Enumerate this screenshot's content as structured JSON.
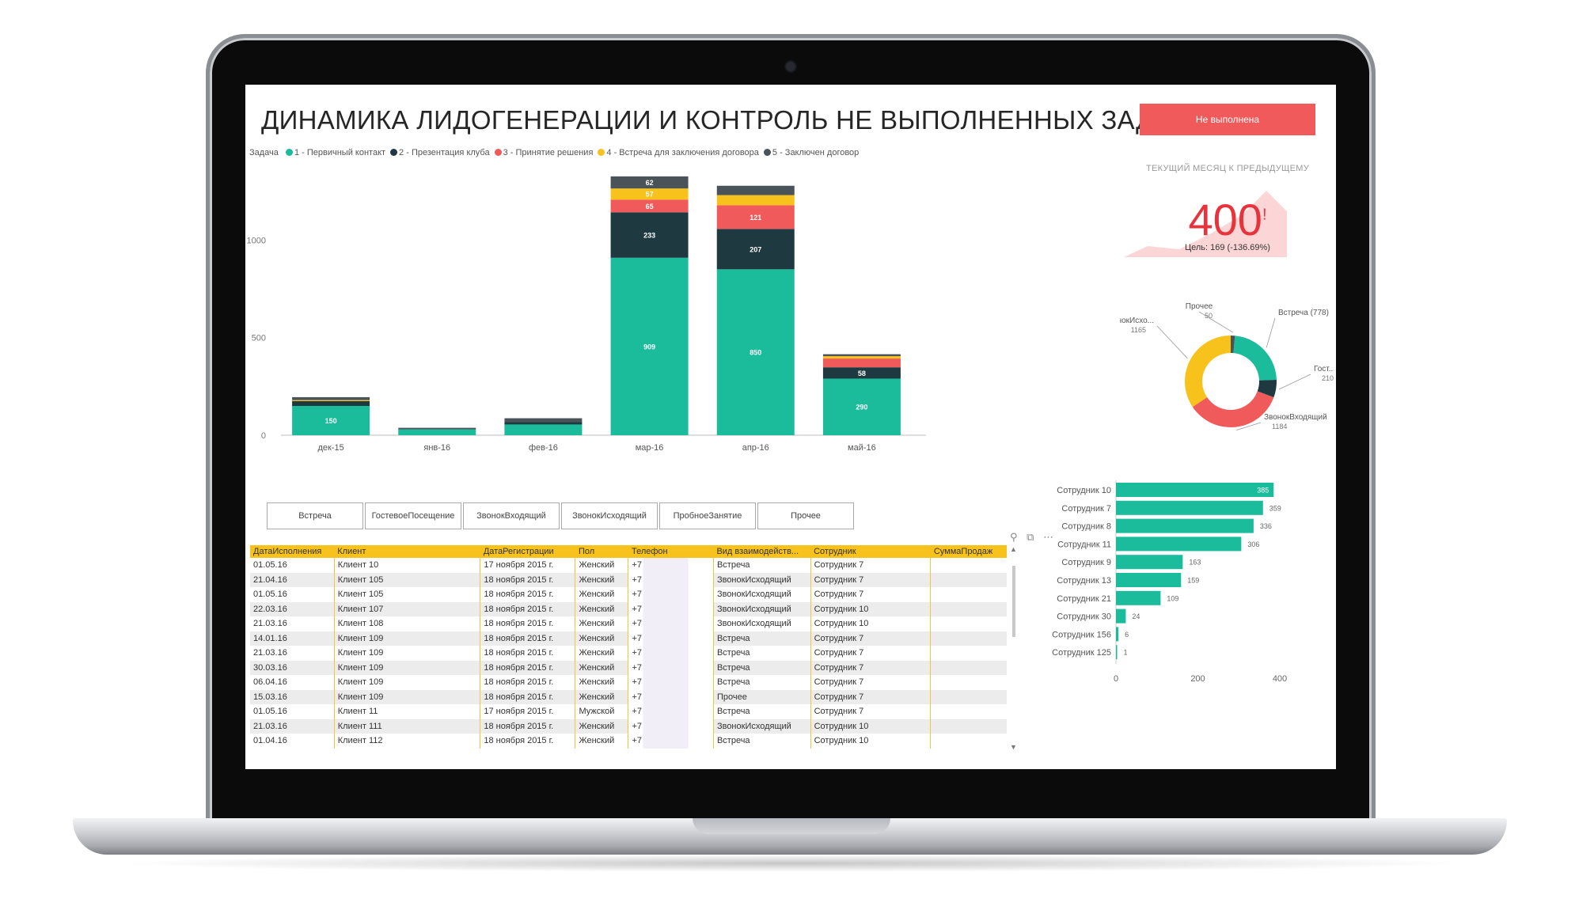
{
  "title": "ДИНАМИКА ЛИДОГЕНЕРАЦИИ И КОНТРОЛЬ НЕ ВЫПОЛНЕННЫХ ЗАДАЧ",
  "status_button": "Не выполнена",
  "legend": {
    "title": "Задача",
    "items": [
      {
        "label": "1 - Первичный контакт",
        "color": "#1abc9c"
      },
      {
        "label": "2 - Презентация клуба",
        "color": "#1e3a40"
      },
      {
        "label": "3 - Принятие решения",
        "color": "#f15a5a"
      },
      {
        "label": "4 - Встреча для заключения договора",
        "color": "#f7c21b"
      },
      {
        "label": "5 - Заключен договор",
        "color": "#4a5458"
      }
    ]
  },
  "kpi": {
    "subtitle": "ТЕКУЩИЙ МЕСЯЦ К ПРЕДЫДУЩЕМУ",
    "value": "400",
    "indicator": "!",
    "goal": "Цель: 169 (-136.69%)"
  },
  "filters": [
    "Встреча",
    "ГостевоеПосещение",
    "ЗвонокВходящий",
    "ЗвонокИсходящий",
    "ПробноеЗанятие",
    "Прочее"
  ],
  "table_tools": {
    "pin": "⚲",
    "focus": "⧉",
    "more": "⋯"
  },
  "table": {
    "columns": [
      "ДатаИсполнения",
      "Клиент",
      "ДатаРегистрации",
      "Пол",
      "Телефон",
      "Вид взаимодейств...",
      "Сотрудник",
      "СуммаПродаж"
    ],
    "rows": [
      [
        "01.05.16",
        "Клиент 10",
        "17 ноября 2015 г.",
        "Женский",
        "+7",
        "Встреча",
        "Сотрудник 7",
        ""
      ],
      [
        "21.04.16",
        "Клиент 105",
        "18 ноября 2015 г.",
        "Женский",
        "+7",
        "ЗвонокИсходящий",
        "Сотрудник 7",
        ""
      ],
      [
        "01.05.16",
        "Клиент 105",
        "18 ноября 2015 г.",
        "Женский",
        "+7",
        "ЗвонокИсходящий",
        "Сотрудник 7",
        ""
      ],
      [
        "22.03.16",
        "Клиент 107",
        "18 ноября 2015 г.",
        "Женский",
        "+7",
        "ЗвонокИсходящий",
        "Сотрудник 10",
        ""
      ],
      [
        "21.03.16",
        "Клиент 108",
        "18 ноября 2015 г.",
        "Женский",
        "+7",
        "ЗвонокИсходящий",
        "Сотрудник 10",
        ""
      ],
      [
        "14.01.16",
        "Клиент 109",
        "18 ноября 2015 г.",
        "Женский",
        "+7",
        "Встреча",
        "Сотрудник 7",
        ""
      ],
      [
        "21.03.16",
        "Клиент 109",
        "18 ноября 2015 г.",
        "Женский",
        "+7",
        "Встреча",
        "Сотрудник 7",
        ""
      ],
      [
        "30.03.16",
        "Клиент 109",
        "18 ноября 2015 г.",
        "Женский",
        "+7",
        "Встреча",
        "Сотрудник 7",
        ""
      ],
      [
        "06.04.16",
        "Клиент 109",
        "18 ноября 2015 г.",
        "Женский",
        "+7",
        "Встреча",
        "Сотрудник 7",
        ""
      ],
      [
        "15.03.16",
        "Клиент 109",
        "18 ноября 2015 г.",
        "Женский",
        "+7",
        "Прочее",
        "Сотрудник 7",
        ""
      ],
      [
        "01.05.16",
        "Клиент 11",
        "17 ноября 2015 г.",
        "Мужской",
        "+7",
        "Встреча",
        "Сотрудник 7",
        ""
      ],
      [
        "21.03.16",
        "Клиент 111",
        "18 ноября 2015 г.",
        "Женский",
        "+7",
        "ЗвонокИсходящий",
        "Сотрудник 10",
        ""
      ],
      [
        "01.04.16",
        "Клиент 112",
        "18 ноября 2015 г.",
        "Женский",
        "+7",
        "Встреча",
        "Сотрудник 10",
        ""
      ]
    ]
  },
  "scroll": {
    "up": "▲",
    "down": "▼"
  },
  "chart_data": [
    {
      "type": "bar",
      "stacked": true,
      "categories": [
        "дек-15",
        "янв-16",
        "фев-16",
        "мар-16",
        "апр-16",
        "май-16"
      ],
      "ylim": [
        0,
        1350
      ],
      "yticks": [
        0,
        500,
        1000
      ],
      "grid": false,
      "legend_position": "top-left",
      "series": [
        {
          "name": "1 - Первичный контакт",
          "color": "#1abc9c",
          "values": [
            150,
            30,
            55,
            909,
            850,
            290
          ],
          "labels": [
            "150",
            "",
            "",
            "909",
            "850",
            "290"
          ]
        },
        {
          "name": "2 - Презентация клуба",
          "color": "#1e3a40",
          "values": [
            25,
            0,
            12,
            233,
            207,
            58
          ],
          "labels": [
            "",
            "",
            "",
            "233",
            "207",
            "58"
          ]
        },
        {
          "name": "3 - Принятие решения",
          "color": "#f15a5a",
          "values": [
            0,
            0,
            0,
            65,
            121,
            45
          ],
          "labels": [
            "",
            "",
            "",
            "65",
            "121",
            ""
          ]
        },
        {
          "name": "4 - Встреча для заключения договора",
          "color": "#f7c21b",
          "values": [
            5,
            0,
            0,
            57,
            52,
            12
          ],
          "labels": [
            "",
            "",
            "",
            "57",
            "",
            ""
          ]
        },
        {
          "name": "5 - Заключен договор",
          "color": "#4a5458",
          "values": [
            15,
            8,
            20,
            62,
            48,
            10
          ],
          "labels": [
            "",
            "",
            "",
            "62",
            "",
            ""
          ]
        }
      ]
    },
    {
      "type": "pie",
      "donut": true,
      "slices": [
        {
          "label": "Встреча",
          "value": 778,
          "display": "Встреча (778)",
          "color": "#1abc9c"
        },
        {
          "label": "Гост...",
          "value": 210,
          "display": "Гост...",
          "value_text": "210",
          "color": "#1e3a40"
        },
        {
          "label": "ЗвонокВходящий",
          "value": 1184,
          "display": "ЗвонокВходящий",
          "value_text": "1184",
          "color": "#f15a5a"
        },
        {
          "label": "ЗвонокИсхо...",
          "value": 1165,
          "display": "ЗвонокИсхо...",
          "value_text": "1165",
          "color": "#f7c21b"
        },
        {
          "label": "Прочее",
          "value": 50,
          "display": "Прочее",
          "value_text": "50",
          "color": "#4a5458"
        }
      ]
    },
    {
      "type": "bar",
      "orientation": "horizontal",
      "categories": [
        "Сотрудник 10",
        "Сотрудник 7",
        "Сотрудник 8",
        "Сотрудник 11",
        "Сотрудник 9",
        "Сотрудник 13",
        "Сотрудник 21",
        "Сотрудник 30",
        "Сотрудник 156",
        "Сотрудник 125"
      ],
      "values": [
        385,
        359,
        336,
        306,
        163,
        159,
        109,
        24,
        6,
        1
      ],
      "xlim": [
        0,
        400
      ],
      "xticks": [
        0,
        200,
        400
      ],
      "color": "#1abc9c"
    }
  ]
}
